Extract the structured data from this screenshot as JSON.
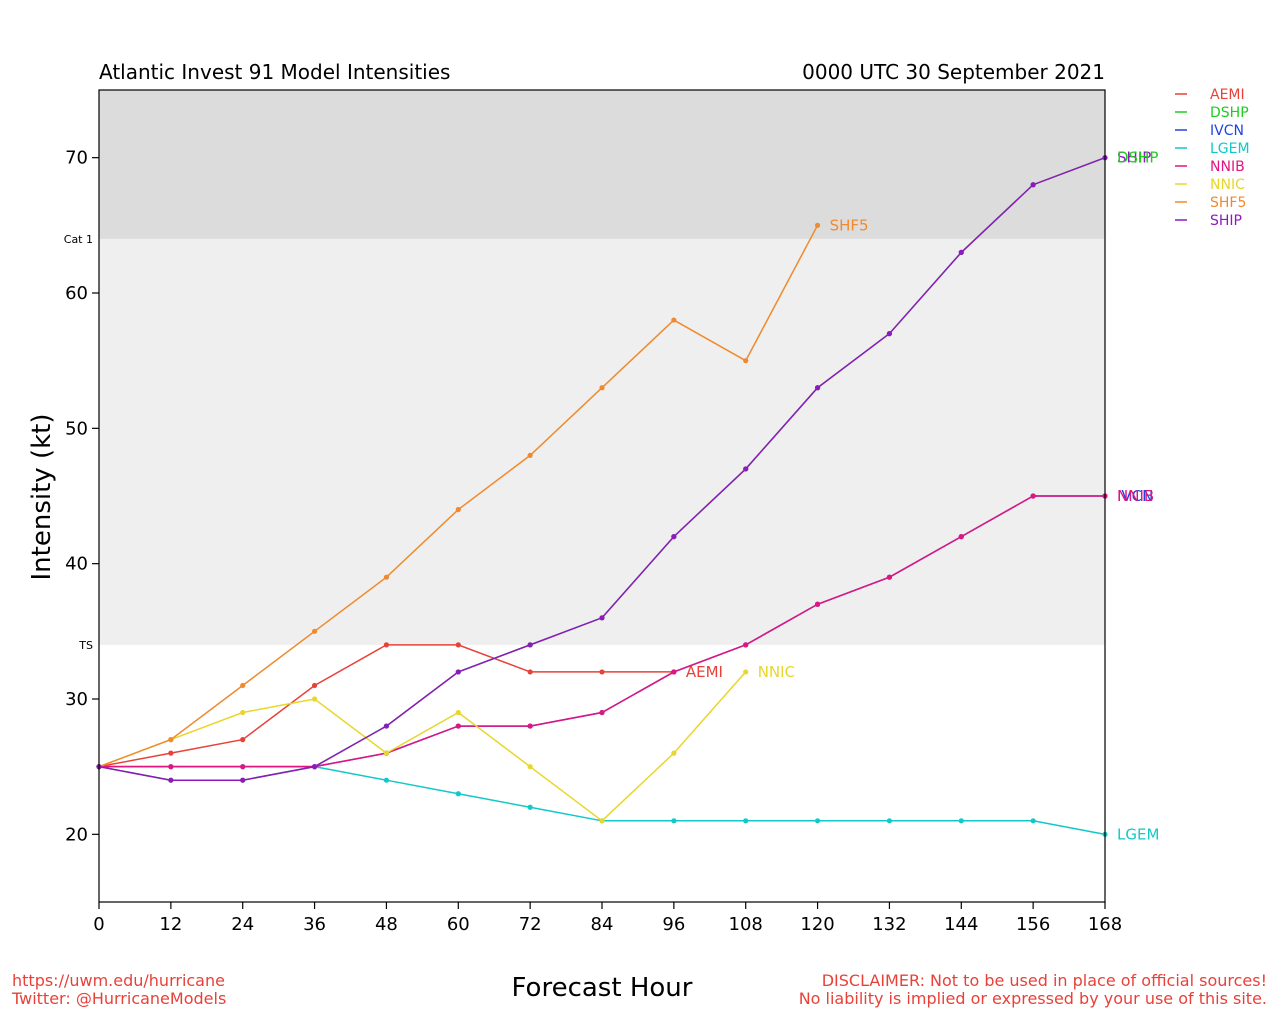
{
  "chart_data": {
    "type": "line",
    "title": "Atlantic Invest 91 Model Intensities",
    "subtitle": "0000 UTC 30 September 2021",
    "xlabel": "Forecast Hour",
    "ylabel": "Intensity (kt)",
    "xlim": [
      0,
      168
    ],
    "ylim": [
      15,
      75
    ],
    "xticks": [
      0,
      12,
      24,
      36,
      48,
      60,
      72,
      84,
      96,
      108,
      120,
      132,
      144,
      156,
      168
    ],
    "yticks": [
      20,
      30,
      40,
      50,
      60,
      70
    ],
    "thresholds": [
      {
        "label": "TS",
        "value": 34
      },
      {
        "label": "Cat 1",
        "value": 64
      }
    ],
    "band_colors": {
      "below_ts": "#ffffff",
      "ts_band": "#efefef",
      "hurricane_band": "#dcdcdc"
    },
    "legend_position": "outside-right",
    "series": [
      {
        "name": "AEMI",
        "color": "#e8413a",
        "x": [
          0,
          12,
          24,
          36,
          48,
          60,
          72,
          84,
          96
        ],
        "y": [
          25,
          26,
          27,
          31,
          34,
          34,
          32,
          32,
          32
        ]
      },
      {
        "name": "DSHP",
        "color": "#1fcc1f",
        "x": [
          0,
          12,
          24,
          36,
          48,
          60,
          72,
          84,
          96,
          108,
          120,
          132,
          144,
          156,
          168
        ],
        "y": [
          25,
          24,
          24,
          25,
          28,
          32,
          34,
          36,
          42,
          47,
          53,
          57,
          63,
          68,
          70
        ]
      },
      {
        "name": "IVCN",
        "color": "#2244dd",
        "x": [
          0,
          12,
          24,
          36,
          48,
          60,
          72,
          84,
          96,
          108,
          120,
          132,
          144,
          156,
          168
        ],
        "y": [
          25,
          25,
          25,
          25,
          26,
          28,
          28,
          29,
          32,
          34,
          37,
          39,
          42,
          45,
          45
        ]
      },
      {
        "name": "LGEM",
        "color": "#12c8c8",
        "x": [
          0,
          12,
          24,
          36,
          48,
          60,
          72,
          84,
          96,
          108,
          120,
          132,
          144,
          156,
          168
        ],
        "y": [
          25,
          25,
          25,
          25,
          24,
          23,
          22,
          21,
          21,
          21,
          21,
          21,
          21,
          21,
          20
        ]
      },
      {
        "name": "NNIB",
        "color": "#e0157f",
        "x": [
          0,
          12,
          24,
          36,
          48,
          60,
          72,
          84,
          96,
          108,
          120,
          132,
          144,
          156,
          168
        ],
        "y": [
          25,
          25,
          25,
          25,
          26,
          28,
          28,
          29,
          32,
          34,
          37,
          39,
          42,
          45,
          45
        ]
      },
      {
        "name": "NNIC",
        "color": "#e8d62a",
        "x": [
          0,
          12,
          24,
          36,
          48,
          60,
          72,
          84,
          96,
          108
        ],
        "y": [
          25,
          27,
          29,
          30,
          26,
          29,
          25,
          21,
          26,
          32
        ]
      },
      {
        "name": "SHF5",
        "color": "#ef8a2e",
        "x": [
          0,
          12,
          24,
          36,
          48,
          60,
          72,
          84,
          96,
          108,
          120
        ],
        "y": [
          25,
          27,
          31,
          35,
          39,
          44,
          48,
          53,
          58,
          55,
          65
        ]
      },
      {
        "name": "SHIP",
        "color": "#8f19c0",
        "x": [
          0,
          12,
          24,
          36,
          48,
          60,
          72,
          84,
          96,
          108,
          120,
          132,
          144,
          156,
          168
        ],
        "y": [
          25,
          24,
          24,
          25,
          28,
          32,
          34,
          36,
          42,
          47,
          53,
          57,
          63,
          68,
          70
        ]
      }
    ],
    "end_labels": [
      {
        "text": "SHIP",
        "series": "SHIP"
      },
      {
        "text": "DSHP",
        "series": "DSHP"
      },
      {
        "text": "IVCN",
        "series": "IVCN"
      },
      {
        "text": "NNIB",
        "series": "NNIB"
      },
      {
        "text": "LGEM",
        "series": "LGEM"
      },
      {
        "text": "SHF5",
        "series": "SHF5"
      },
      {
        "text": "NNIC",
        "series": "NNIC"
      },
      {
        "text": "AEMI",
        "series": "AEMI"
      }
    ]
  },
  "footer": {
    "link": "https://uwm.edu/hurricane",
    "twitter": "Twitter: @HurricaneModels",
    "disclaimer_line1": "DISCLAIMER: Not to be used in place of official sources!",
    "disclaimer_line2": "No liability is implied or expressed by your use of this site."
  }
}
